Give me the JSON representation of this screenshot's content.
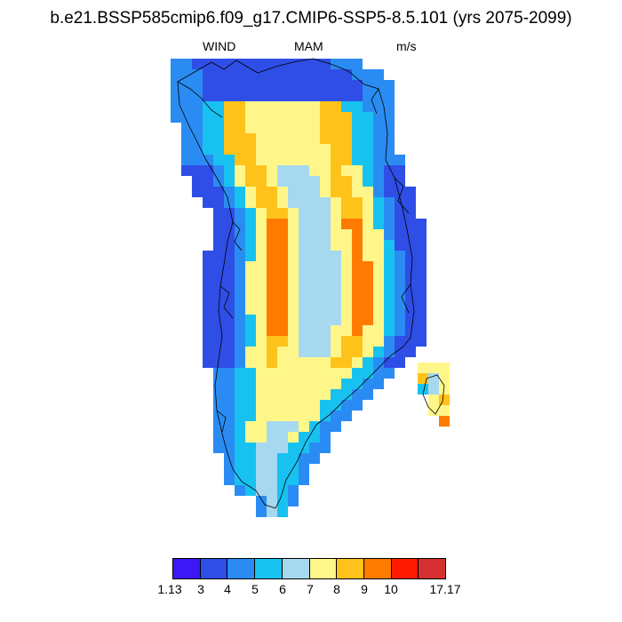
{
  "title": "b.e21.BSSP585cmip6.f09_g17.CMIP6-SSP5-8.5.101 (yrs 2075-2099)",
  "subtitle": {
    "variable": "WIND",
    "season": "MAM",
    "units": "m/s"
  },
  "colorbar": {
    "colors": [
      "#3b18f5",
      "#2f4ee6",
      "#2a8cf2",
      "#18c2f0",
      "#a6d8f0",
      "#fff68a",
      "#ffc21a",
      "#ff7a00",
      "#ff1a00",
      "#d63030"
    ],
    "labels": [
      "1.13",
      "3",
      "4",
      "5",
      "6",
      "7",
      "8",
      "9",
      "10",
      "17.17"
    ]
  }
}
